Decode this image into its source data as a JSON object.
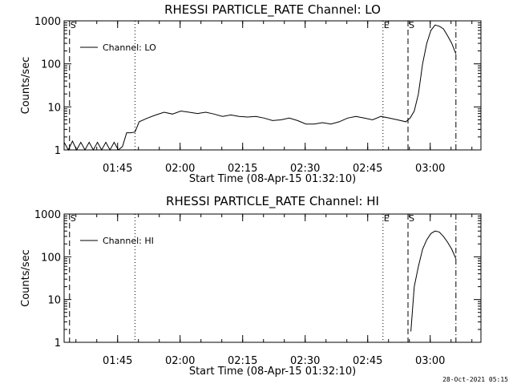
{
  "page": {
    "timestamp": "28-Oct-2021 05:15"
  },
  "chart_data": [
    {
      "type": "line",
      "title": "RHESSI PARTICLE_RATE Channel: LO",
      "ylabel": "Counts/sec",
      "xlabel": "Start Time (08-Apr-15 01:32:10)",
      "yscale": "log",
      "ylim": [
        1,
        1000
      ],
      "xlim_minutes": [
        0,
        100
      ],
      "y_ticks": [
        {
          "value": 1,
          "label": "1"
        },
        {
          "value": 10,
          "label": "10"
        },
        {
          "value": 100,
          "label": "100"
        },
        {
          "value": 1000,
          "label": "1000"
        }
      ],
      "x_ticks": [
        {
          "minute": 12.83,
          "label": "01:45"
        },
        {
          "minute": 27.83,
          "label": "02:00"
        },
        {
          "minute": 42.83,
          "label": "02:15"
        },
        {
          "minute": 57.83,
          "label": "02:30"
        },
        {
          "minute": 72.83,
          "label": "02:45"
        },
        {
          "minute": 87.83,
          "label": "03:00"
        }
      ],
      "legend": {
        "label": "Channel: LO",
        "placement": "top-left"
      },
      "event_markers": [
        {
          "minute": 1.3,
          "style": "dashed",
          "label": "S"
        },
        {
          "minute": 17.0,
          "style": "dotted",
          "label": ""
        },
        {
          "minute": 76.5,
          "style": "dotted",
          "label": "E"
        },
        {
          "minute": 82.5,
          "style": "dashed",
          "label": "S"
        },
        {
          "minute": 94.0,
          "style": "dashdot",
          "label": ""
        }
      ],
      "series": [
        {
          "name": "Channel: LO",
          "x": [
            0,
            1,
            2,
            3,
            4,
            5,
            6,
            7,
            8,
            9,
            10,
            11,
            12,
            13,
            14,
            15,
            16,
            17,
            18,
            20,
            22,
            24,
            26,
            28,
            30,
            32,
            34,
            36,
            38,
            40,
            42,
            44,
            46,
            48,
            50,
            52,
            54,
            56,
            58,
            60,
            62,
            64,
            66,
            68,
            70,
            72,
            74,
            76,
            78,
            80,
            82,
            83,
            84,
            85,
            86,
            87,
            88,
            89,
            90,
            91,
            92,
            93,
            94
          ],
          "y": [
            1.5,
            1.0,
            1.6,
            1.0,
            1.5,
            1.0,
            1.5,
            1.0,
            1.5,
            1.0,
            1.5,
            1.0,
            1.5,
            1.0,
            1.2,
            2.5,
            2.5,
            2.6,
            4.5,
            5.5,
            6.5,
            7.5,
            6.8,
            8.0,
            7.5,
            7.0,
            7.5,
            6.8,
            6.0,
            6.5,
            6.0,
            5.8,
            6.0,
            5.5,
            4.8,
            5.0,
            5.5,
            4.8,
            4.0,
            4.0,
            4.3,
            4.0,
            4.5,
            5.5,
            6.0,
            5.5,
            5.0,
            6.0,
            5.5,
            5.0,
            4.5,
            5.5,
            8.0,
            20,
            100,
            300,
            600,
            800,
            750,
            650,
            450,
            300,
            170
          ]
        }
      ]
    },
    {
      "type": "line",
      "title": "RHESSI PARTICLE_RATE Channel: HI",
      "ylabel": "Counts/sec",
      "xlabel": "Start Time (08-Apr-15 01:32:10)",
      "yscale": "log",
      "ylim": [
        1,
        1000
      ],
      "xlim_minutes": [
        0,
        100
      ],
      "y_ticks": [
        {
          "value": 1,
          "label": "1"
        },
        {
          "value": 10,
          "label": "10"
        },
        {
          "value": 100,
          "label": "100"
        },
        {
          "value": 1000,
          "label": "1000"
        }
      ],
      "x_ticks": [
        {
          "minute": 12.83,
          "label": "01:45"
        },
        {
          "minute": 27.83,
          "label": "02:00"
        },
        {
          "minute": 42.83,
          "label": "02:15"
        },
        {
          "minute": 57.83,
          "label": "02:30"
        },
        {
          "minute": 72.83,
          "label": "02:45"
        },
        {
          "minute": 87.83,
          "label": "03:00"
        }
      ],
      "legend": {
        "label": "Channel: HI",
        "placement": "top-left"
      },
      "event_markers": [
        {
          "minute": 1.3,
          "style": "dashed",
          "label": "S"
        },
        {
          "minute": 17.0,
          "style": "dotted",
          "label": ""
        },
        {
          "minute": 76.5,
          "style": "dotted",
          "label": "E"
        },
        {
          "minute": 82.5,
          "style": "dashed",
          "label": "S"
        },
        {
          "minute": 94.0,
          "style": "dashdot",
          "label": ""
        }
      ],
      "series": [
        {
          "name": "Channel: HI",
          "x": [
            83.2,
            84,
            85,
            86,
            87,
            88,
            89,
            90,
            91,
            92,
            93,
            94
          ],
          "y": [
            1.8,
            20,
            60,
            150,
            250,
            350,
            400,
            380,
            300,
            220,
            150,
            90
          ]
        }
      ]
    }
  ]
}
